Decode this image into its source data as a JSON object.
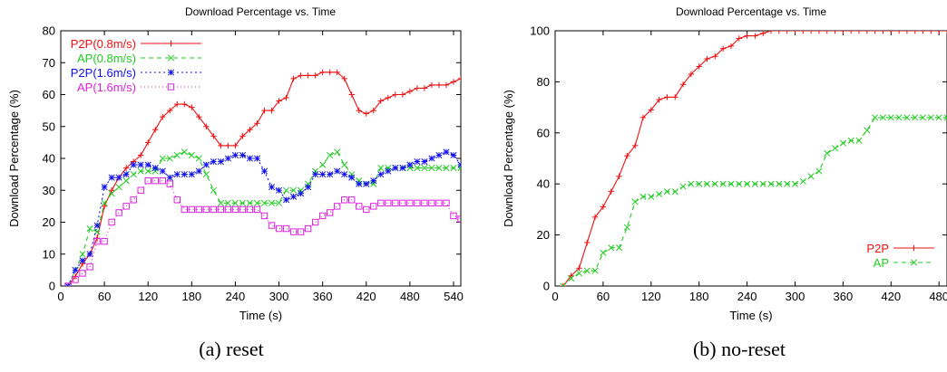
{
  "captions": [
    "(a) reset",
    "(b) no-reset"
  ],
  "chart_data": [
    {
      "type": "line",
      "title": "Download Percentage vs. Time",
      "xlabel": "Time (s)",
      "ylabel": "Download Percentage (%)",
      "xlim": [
        0,
        550
      ],
      "ylim": [
        0,
        80
      ],
      "xticks": [
        0,
        60,
        120,
        180,
        240,
        300,
        360,
        420,
        480,
        540
      ],
      "yticks": [
        0,
        10,
        20,
        30,
        40,
        50,
        60,
        70,
        80
      ],
      "legend_position": "top-left",
      "series": [
        {
          "name": "P2P(0.8m/s)",
          "color": "#ee1111",
          "dash": "",
          "marker": "plus",
          "x": [
            10,
            20,
            30,
            40,
            50,
            60,
            70,
            80,
            90,
            100,
            110,
            120,
            130,
            140,
            150,
            160,
            170,
            180,
            190,
            200,
            210,
            220,
            230,
            240,
            250,
            260,
            270,
            280,
            290,
            300,
            310,
            320,
            330,
            340,
            350,
            360,
            370,
            380,
            390,
            400,
            410,
            420,
            430,
            440,
            450,
            460,
            470,
            480,
            490,
            500,
            510,
            520,
            530,
            540,
            550
          ],
          "y": [
            0,
            3,
            7,
            10,
            15,
            25,
            30,
            34,
            37,
            39,
            41,
            45,
            49,
            53,
            55,
            57,
            57,
            56,
            53,
            50,
            47,
            44,
            44,
            44,
            47,
            49,
            51,
            55,
            55,
            58,
            59,
            65,
            66,
            66,
            66,
            67,
            67,
            67,
            65,
            60,
            55,
            54,
            55,
            58,
            59,
            60,
            60,
            61,
            62,
            62,
            63,
            63,
            63,
            64,
            65
          ]
        },
        {
          "name": "AP(0.8m/s)",
          "color": "#22cc22",
          "dash": "5,4",
          "marker": "x",
          "x": [
            10,
            20,
            30,
            40,
            50,
            60,
            70,
            80,
            90,
            100,
            110,
            120,
            130,
            140,
            150,
            160,
            170,
            180,
            190,
            200,
            210,
            220,
            230,
            240,
            250,
            260,
            270,
            280,
            290,
            300,
            310,
            320,
            330,
            340,
            350,
            360,
            370,
            380,
            390,
            400,
            410,
            420,
            430,
            440,
            450,
            460,
            470,
            480,
            490,
            500,
            510,
            520,
            530,
            540,
            550
          ],
          "y": [
            0,
            5,
            10,
            18,
            17,
            26,
            29,
            31,
            33,
            35,
            36,
            36,
            36,
            40,
            40,
            41,
            42,
            41,
            40,
            35,
            30,
            26,
            26,
            26,
            26,
            26,
            26,
            26,
            26,
            26,
            30,
            30,
            30,
            32,
            36,
            38,
            41,
            42,
            38,
            35,
            33,
            32,
            32,
            37,
            37,
            37,
            37,
            37,
            37,
            37,
            37,
            37,
            37,
            37,
            37
          ]
        },
        {
          "name": "P2P(1.6m/s)",
          "color": "#1111ee",
          "dash": "2,3",
          "marker": "star",
          "x": [
            10,
            20,
            30,
            40,
            50,
            60,
            70,
            80,
            90,
            100,
            110,
            120,
            130,
            140,
            150,
            160,
            170,
            180,
            190,
            200,
            210,
            220,
            230,
            240,
            250,
            260,
            270,
            280,
            290,
            300,
            310,
            320,
            330,
            340,
            350,
            360,
            370,
            380,
            390,
            400,
            410,
            420,
            430,
            440,
            450,
            460,
            470,
            480,
            490,
            500,
            510,
            520,
            530,
            540,
            550
          ],
          "y": [
            0,
            5,
            8,
            10,
            19,
            31,
            34,
            34,
            35,
            38,
            38,
            38,
            37,
            36,
            34,
            35,
            35,
            35,
            36,
            38,
            39,
            39,
            40,
            41,
            41,
            40,
            40,
            36,
            31,
            30,
            27,
            28,
            29,
            31,
            35,
            35,
            35,
            36,
            35,
            34,
            32,
            32,
            33,
            35,
            36,
            37,
            37,
            38,
            39,
            39,
            40,
            41,
            42,
            41,
            38
          ]
        },
        {
          "name": "AP(1.6m/s)",
          "color": "#dd22dd",
          "dash": "1,3",
          "marker": "box",
          "x": [
            10,
            20,
            30,
            40,
            50,
            60,
            70,
            80,
            90,
            100,
            110,
            120,
            130,
            140,
            150,
            160,
            170,
            180,
            190,
            200,
            210,
            220,
            230,
            240,
            250,
            260,
            270,
            280,
            290,
            300,
            310,
            320,
            330,
            340,
            350,
            360,
            370,
            380,
            390,
            400,
            410,
            420,
            430,
            440,
            450,
            460,
            470,
            480,
            490,
            500,
            510,
            520,
            530,
            540,
            550
          ],
          "y": [
            0,
            2,
            4,
            6,
            14,
            14,
            20,
            23,
            25,
            27,
            30,
            33,
            33,
            33,
            32,
            27,
            24,
            24,
            24,
            24,
            24,
            24,
            24,
            24,
            24,
            24,
            24,
            22,
            19,
            18,
            18,
            17,
            17,
            18,
            20,
            22,
            23,
            25,
            27,
            27,
            25,
            24,
            25,
            26,
            26,
            26,
            26,
            26,
            26,
            26,
            26,
            26,
            26,
            22,
            21
          ]
        }
      ]
    },
    {
      "type": "line",
      "title": "Download Percentage vs. Time",
      "xlabel": "Time (s)",
      "ylabel": "Download Percentage (%)",
      "xlim": [
        0,
        490
      ],
      "ylim": [
        0,
        100
      ],
      "xticks": [
        0,
        60,
        120,
        180,
        240,
        300,
        360,
        420,
        480
      ],
      "yticks": [
        0,
        20,
        40,
        60,
        80,
        100
      ],
      "legend_position": "bottom-right",
      "series": [
        {
          "name": "P2P",
          "color": "#ee1111",
          "dash": "",
          "marker": "plus",
          "x": [
            10,
            20,
            30,
            40,
            50,
            60,
            70,
            80,
            90,
            100,
            110,
            120,
            130,
            140,
            150,
            160,
            170,
            180,
            190,
            200,
            210,
            220,
            230,
            240,
            250,
            260,
            270,
            280,
            290,
            300,
            310,
            320,
            330,
            340,
            350,
            360,
            370,
            380,
            390,
            400,
            410,
            420,
            430,
            440,
            450,
            460,
            470,
            480,
            490
          ],
          "y": [
            0,
            4,
            7,
            17,
            27,
            31,
            37,
            43,
            51,
            55,
            66,
            69,
            73,
            74,
            74,
            79,
            83,
            86,
            89,
            90,
            93,
            94,
            97,
            98,
            98,
            99,
            100,
            100,
            100,
            100,
            100,
            100,
            100,
            100,
            100,
            100,
            100,
            100,
            100,
            100,
            100,
            100,
            100,
            100,
            100,
            100,
            100,
            100,
            100
          ]
        },
        {
          "name": "AP",
          "color": "#22cc22",
          "dash": "5,4",
          "marker": "x",
          "x": [
            10,
            20,
            30,
            40,
            50,
            60,
            70,
            80,
            90,
            100,
            110,
            120,
            130,
            140,
            150,
            160,
            170,
            180,
            190,
            200,
            210,
            220,
            230,
            240,
            250,
            260,
            270,
            280,
            290,
            300,
            310,
            320,
            330,
            340,
            350,
            360,
            370,
            380,
            390,
            400,
            410,
            420,
            430,
            440,
            450,
            460,
            470,
            480,
            490
          ],
          "y": [
            0,
            3,
            5,
            6,
            6,
            13,
            15,
            15,
            23,
            33,
            35,
            35,
            36,
            37,
            37,
            39,
            40,
            40,
            40,
            40,
            40,
            40,
            40,
            40,
            40,
            40,
            40,
            40,
            40,
            40,
            41,
            43,
            45,
            52,
            54,
            56,
            57,
            57,
            61,
            66,
            66,
            66,
            66,
            66,
            66,
            66,
            66,
            66,
            66
          ]
        }
      ]
    }
  ]
}
